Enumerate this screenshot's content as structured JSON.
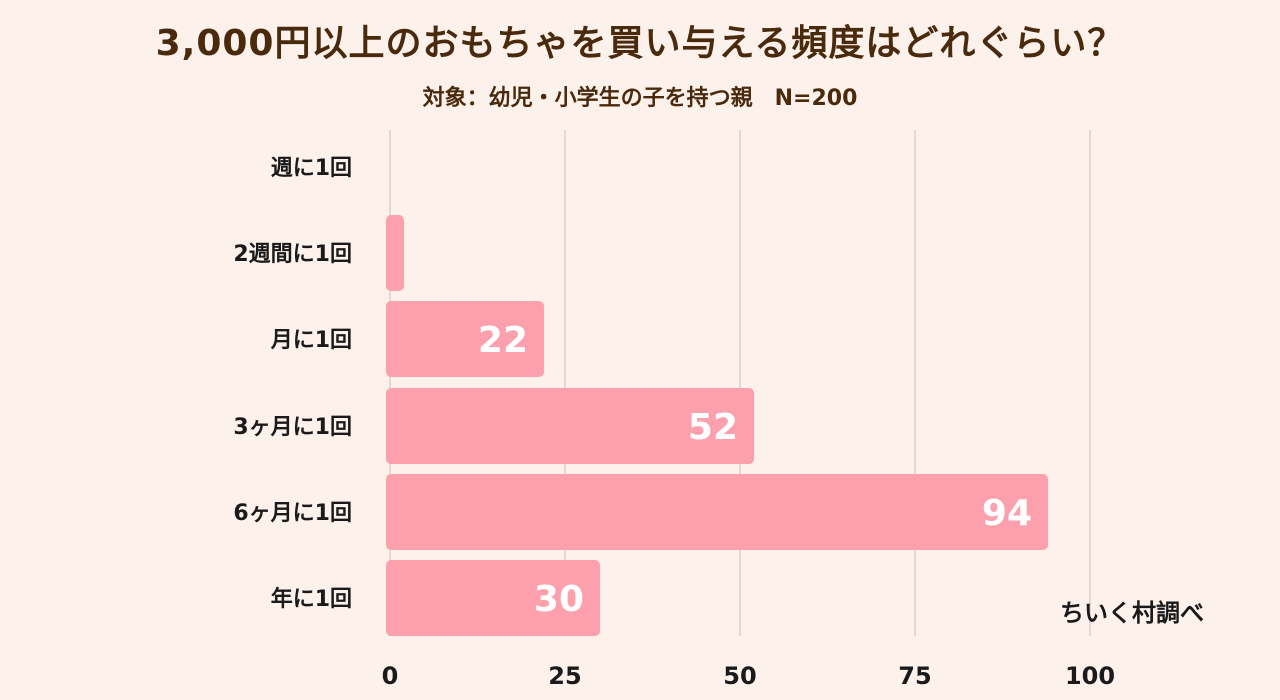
{
  "header": {
    "title": "3,000円以上のおもちゃを買い与える頻度はどれぐらい？",
    "subtitle": "対象：幼児・小学生の子を持つ親　N=200"
  },
  "credit": "ちいく村調べ",
  "colors": {
    "background": "#fdf1ec",
    "bar": "#fda0ae",
    "grid": "#c9bfbb",
    "text": "#1a1a1a",
    "title": "#4a2a0c"
  },
  "chart_data": {
    "type": "bar",
    "orientation": "horizontal",
    "categories": [
      "週に1回",
      "2週間に1回",
      "月に1回",
      "3ヶ月に1回",
      "6ヶ月に1回",
      "年に1回"
    ],
    "values": [
      0,
      2,
      22,
      52,
      94,
      30
    ],
    "value_labels": [
      "",
      "",
      "22",
      "52",
      "94",
      "30"
    ],
    "xlim": [
      0,
      100
    ],
    "xticks": [
      0,
      25,
      50,
      75,
      100
    ],
    "grid": true,
    "legend": "none"
  }
}
